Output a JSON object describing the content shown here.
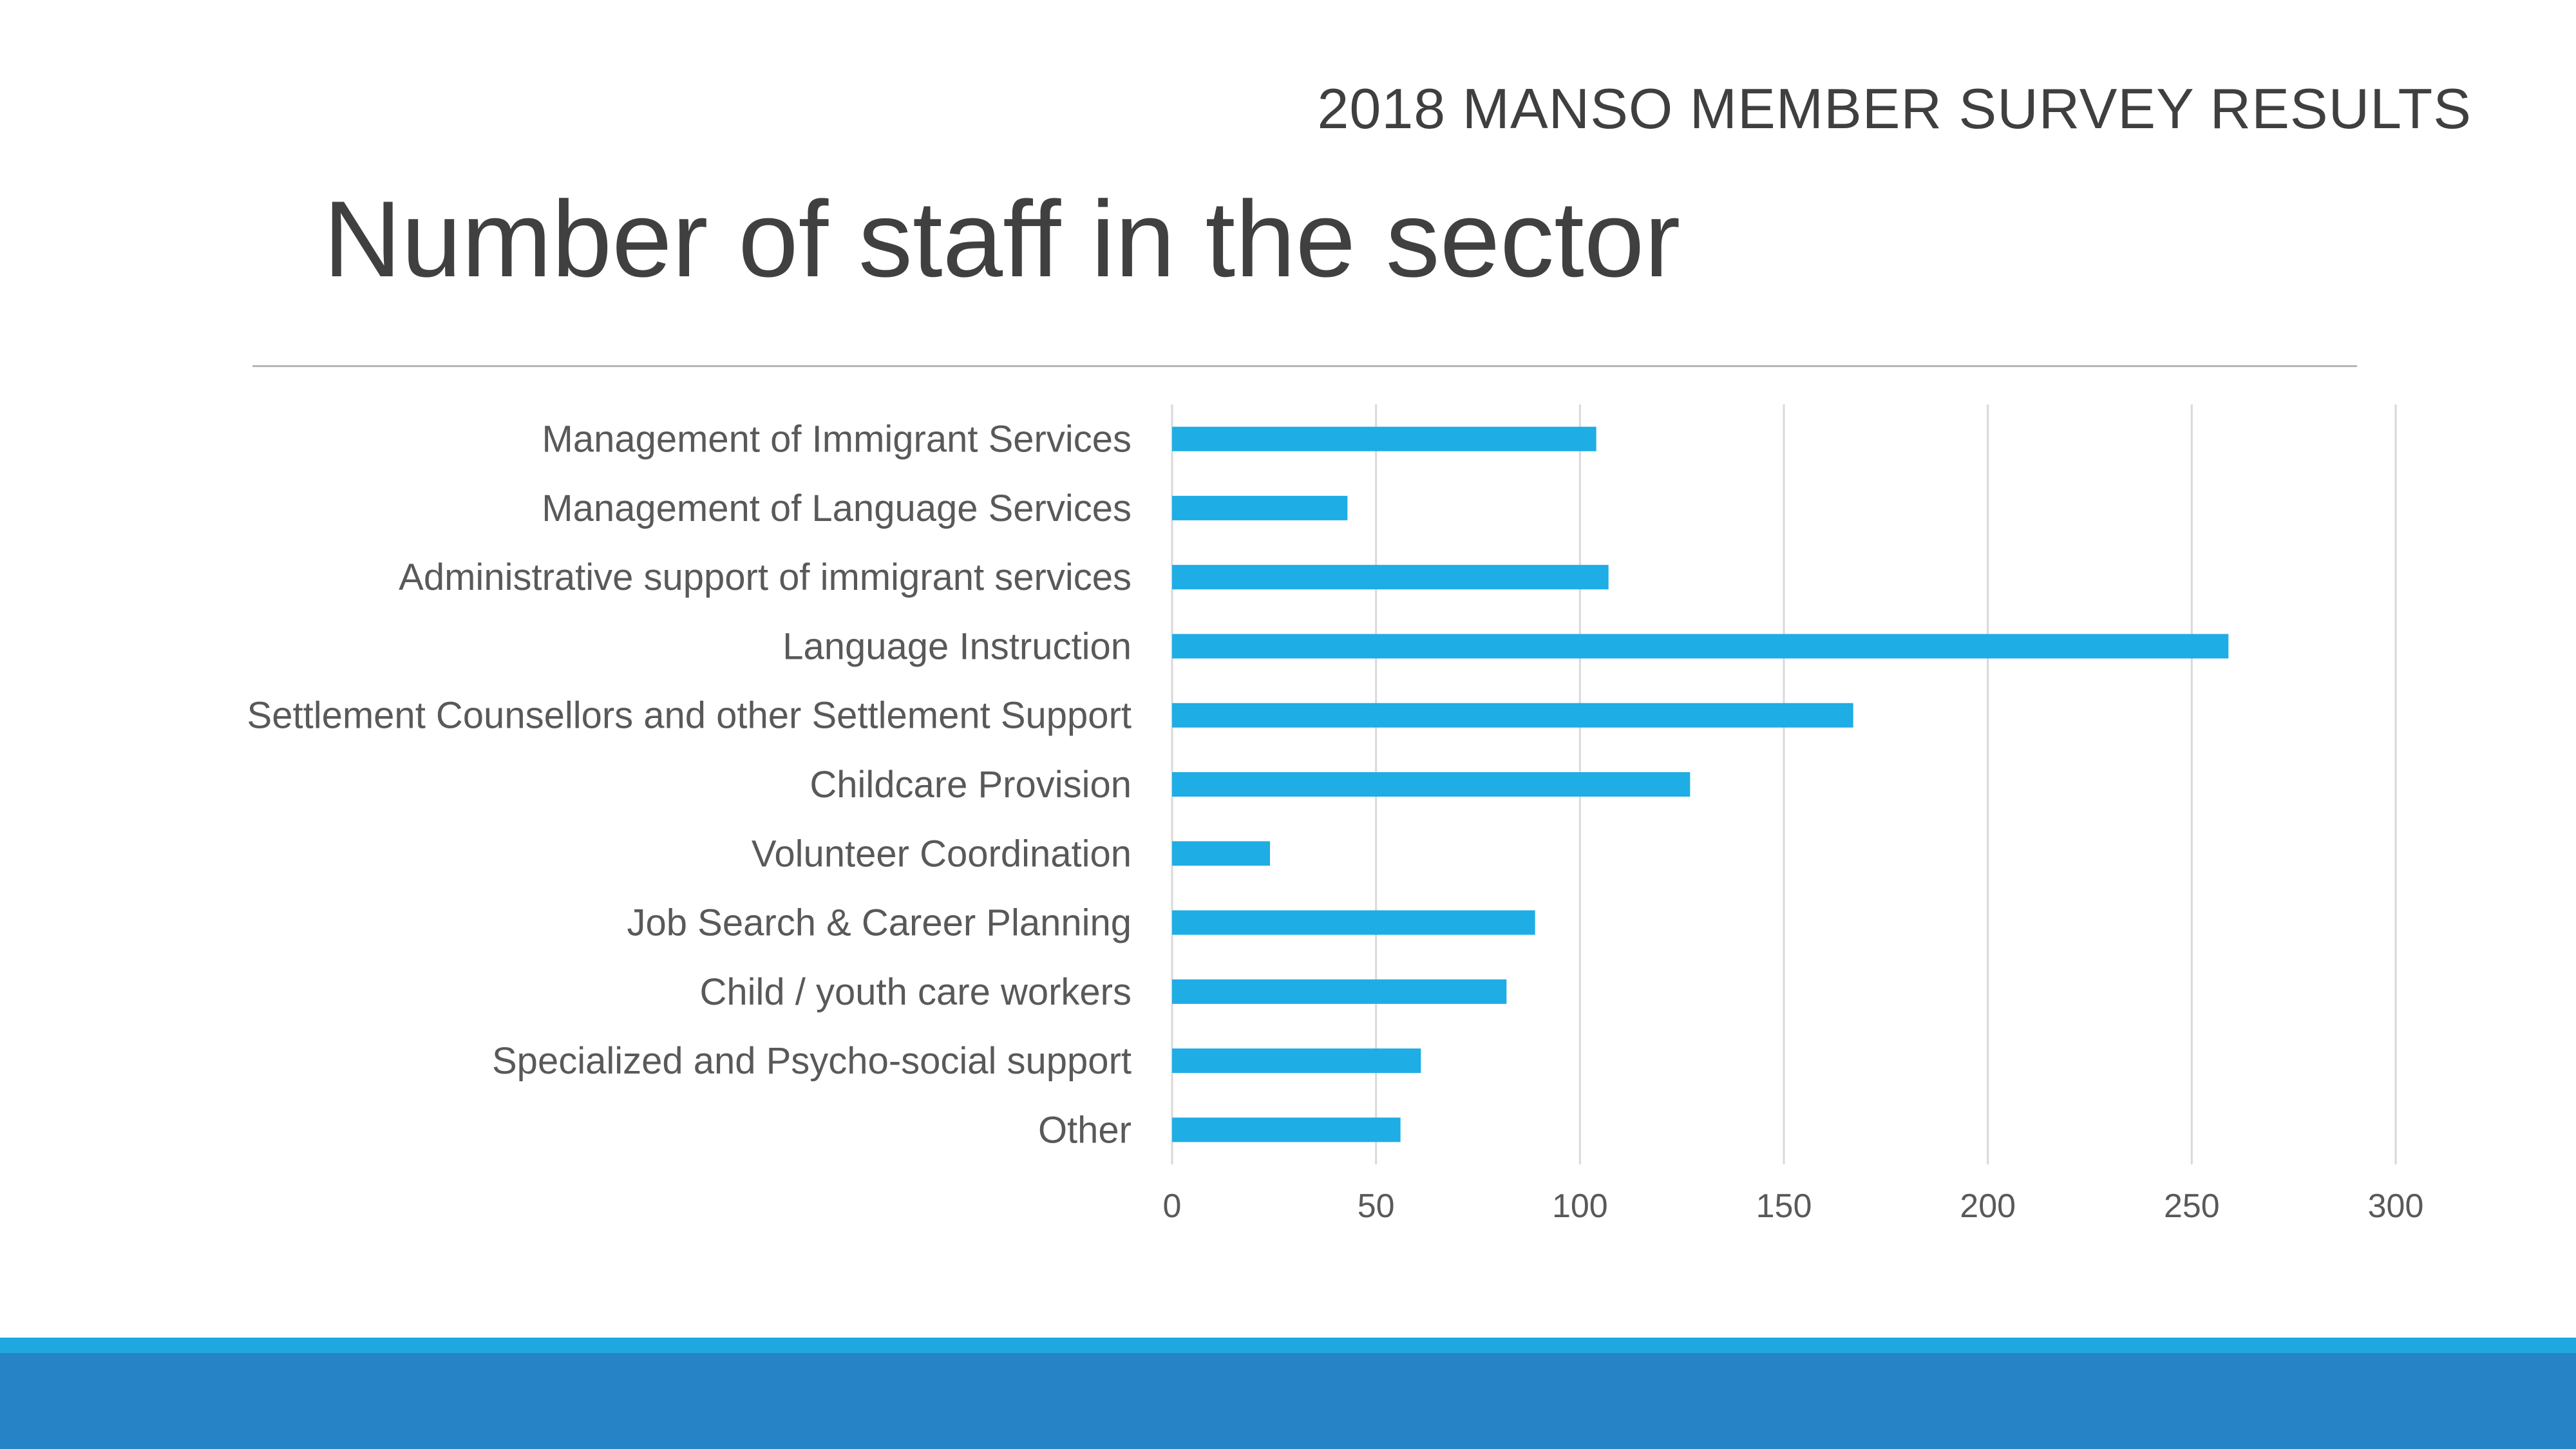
{
  "header": {
    "survey_label": "2018 MANSO MEMBER SURVEY RESULTS"
  },
  "slide": {
    "title": "Number of staff in the sector"
  },
  "theme": {
    "bar_color": "#1EADE4",
    "footer_light": "#1FA8E0",
    "footer_dark": "#2683C6",
    "text_color": "#595959",
    "grid_color": "#D9D9D9"
  },
  "chart_data": {
    "type": "bar",
    "orientation": "horizontal",
    "title": "",
    "xlabel": "",
    "ylabel": "",
    "categories": [
      "Management of Immigrant Services",
      "Management of Language Services",
      "Administrative support of immigrant services",
      "Language Instruction ",
      "Settlement Counsellors and other Settlement Support ",
      "Childcare Provision ",
      "Volunteer Coordination ",
      "Job Search & Career Planning ",
      "Child / youth care workers",
      "Specialized and Psycho-social support",
      "Other"
    ],
    "values": [
      104,
      43,
      107,
      259,
      167,
      127,
      24,
      89,
      82,
      61,
      56
    ],
    "xlim": [
      0,
      300
    ],
    "ticks": [
      "0",
      "50",
      "100",
      "150",
      "200",
      "250",
      "300"
    ],
    "grid": true,
    "legend": "none"
  }
}
